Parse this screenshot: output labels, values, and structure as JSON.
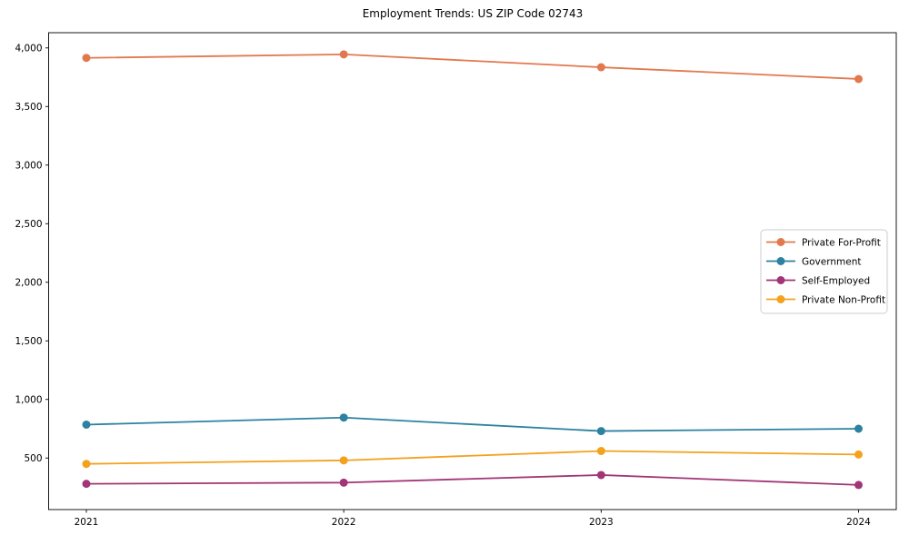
{
  "chart_data": {
    "type": "line",
    "title": "Employment Trends: US ZIP Code 02743",
    "x": [
      "2021",
      "2022",
      "2023",
      "2024"
    ],
    "xtick_labels": [
      "2021",
      "2022",
      "2023",
      "2024"
    ],
    "series": [
      {
        "name": "Private For-Profit",
        "color": "#E2794E",
        "values": [
          3915,
          3945,
          3835,
          3735
        ]
      },
      {
        "name": "Government",
        "color": "#2C82A0",
        "values": [
          785,
          845,
          730,
          750
        ]
      },
      {
        "name": "Self-Employed",
        "color": "#A23577",
        "values": [
          280,
          290,
          355,
          270
        ]
      },
      {
        "name": "Private Non-Profit",
        "color": "#F4A11D",
        "values": [
          450,
          480,
          560,
          530
        ]
      }
    ],
    "yticks": [
      500,
      1000,
      1500,
      2000,
      2500,
      3000,
      3500,
      4000
    ],
    "ytick_labels": [
      "500",
      "1,000",
      "1,500",
      "2,000",
      "2,500",
      "3,000",
      "3,500",
      "4,000"
    ],
    "ylim": [
      60,
      4130
    ],
    "xlabel": "",
    "ylabel": "",
    "grid": false,
    "legend_position": "center right",
    "marker": "circle",
    "marker_size": 4.5,
    "line_width": 1.8
  }
}
